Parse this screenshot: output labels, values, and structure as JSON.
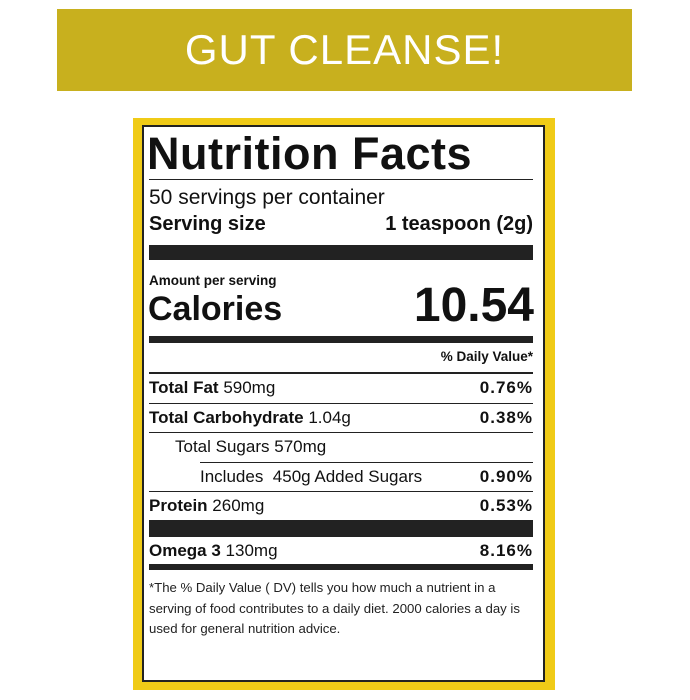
{
  "banner": {
    "title": "GUT CLEANSE!"
  },
  "colors": {
    "banner": "#c8b01e",
    "panel": "#f0cb17"
  },
  "label": {
    "title": "Nutrition Facts",
    "servings": "50 servings per container",
    "serving_size_label": "Serving size",
    "serving_size_value": "1 teaspoon (2g)",
    "amount_per_serving": "Amount per serving",
    "calories_label": "Calories",
    "calories_value": "10.54",
    "dv_header": "% Daily Value*",
    "rows": [
      {
        "name": "Total Fat",
        "amount": "590mg",
        "dv": "0.76%"
      },
      {
        "name": "Total Carbohydrate",
        "amount": "1.04g",
        "dv": "0.38%"
      },
      {
        "name": "Total Sugars",
        "amount": "570mg",
        "dv": ""
      },
      {
        "name": "Includes",
        "amount": "450g Added Sugars",
        "dv": "0.90%"
      },
      {
        "name": "Protein",
        "amount": "260mg",
        "dv": "0.53%"
      },
      {
        "name": "Omega 3",
        "amount": "130mg",
        "dv": "8.16%"
      }
    ],
    "footnote": "*The % Daily Value ( DV) tells you how much a nutrient in a serving of food contributes to a daily diet. 2000 calories a day is used for general nutrition advice."
  }
}
